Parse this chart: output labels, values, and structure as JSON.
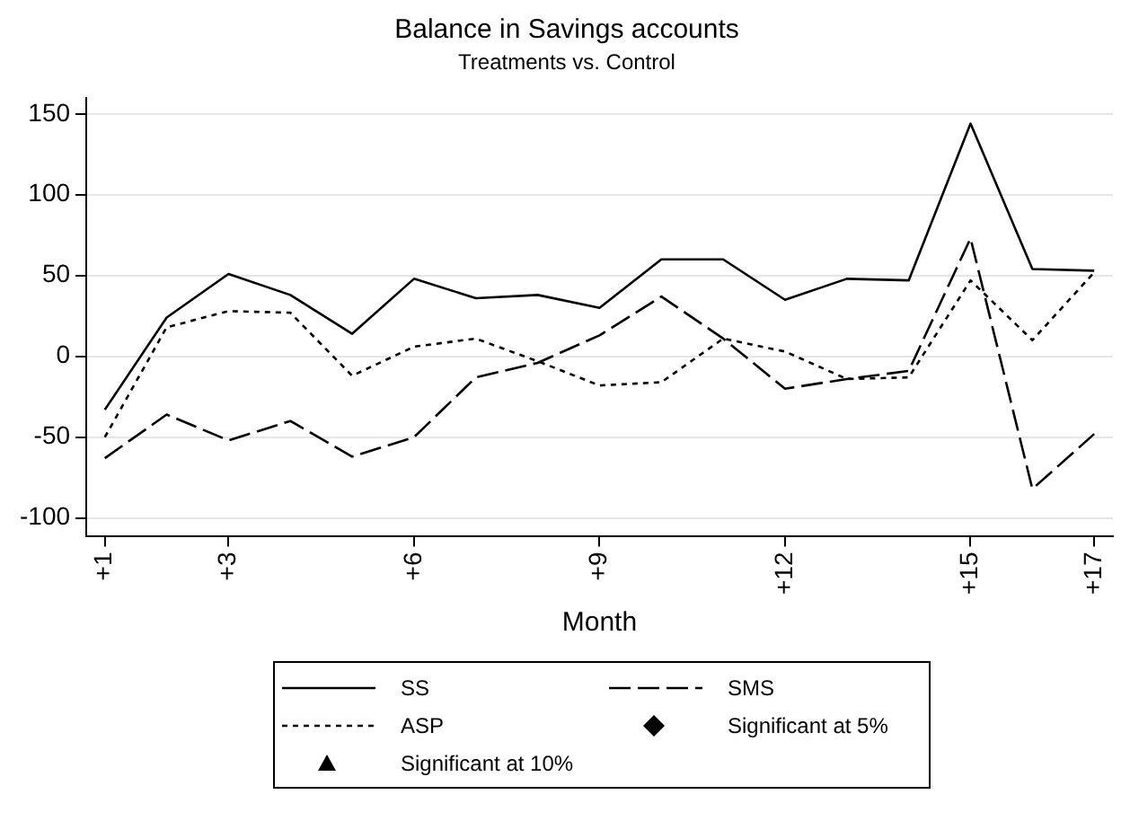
{
  "chart_data": {
    "type": "line",
    "title": "Balance in Savings accounts",
    "subtitle": "Treatments vs. Control",
    "xlabel": "Month",
    "x": [
      1,
      2,
      3,
      4,
      5,
      6,
      7,
      8,
      9,
      10,
      11,
      12,
      13,
      14,
      15,
      16,
      17
    ],
    "xlim": [
      0.7,
      17.3
    ],
    "xticks": [
      {
        "value": 1,
        "label": "+1"
      },
      {
        "value": 3,
        "label": "+3"
      },
      {
        "value": 6,
        "label": "+6"
      },
      {
        "value": 9,
        "label": "+9"
      },
      {
        "value": 12,
        "label": "+12"
      },
      {
        "value": 15,
        "label": "+15"
      },
      {
        "value": 17,
        "label": "+17"
      }
    ],
    "ylim": [
      -111,
      160
    ],
    "yticks": [
      -100,
      -50,
      0,
      50,
      100,
      150
    ],
    "grid": "y",
    "legend": "bottom",
    "marker": "none",
    "series": [
      {
        "name": "SS",
        "color": "#000000",
        "line_style": "solid",
        "values": [
          -33,
          24,
          51,
          38,
          14,
          48,
          36,
          38,
          30,
          60,
          60,
          35,
          48,
          47,
          144,
          54,
          53
        ]
      },
      {
        "name": "SMS",
        "color": "#000000",
        "line_style": "dashed",
        "values": [
          -63,
          -36,
          -52,
          -40,
          -62,
          -50,
          -13,
          -4,
          13,
          37,
          11,
          -20,
          -14,
          -9,
          73,
          -82,
          -48
        ]
      },
      {
        "name": "ASP",
        "color": "#000000",
        "line_style": "dotted",
        "values": [
          -50,
          18,
          28,
          27,
          -12,
          6,
          11,
          -3,
          -18,
          -16,
          11,
          3,
          -14,
          -13,
          47,
          10,
          52
        ]
      },
      {
        "name": "Significant at 5%",
        "type": "scatter",
        "marker": "diamond",
        "color": "#000000",
        "values": [
          null,
          null,
          null,
          null,
          null,
          null,
          null,
          null,
          null,
          null,
          null,
          null,
          null,
          null,
          null,
          null,
          null
        ]
      },
      {
        "name": "Significant at 10%",
        "type": "scatter",
        "marker": "triangle",
        "color": "#000000",
        "values": [
          null,
          null,
          null,
          null,
          null,
          null,
          null,
          null,
          null,
          null,
          null,
          null,
          null,
          null,
          null,
          null,
          null
        ]
      }
    ]
  }
}
